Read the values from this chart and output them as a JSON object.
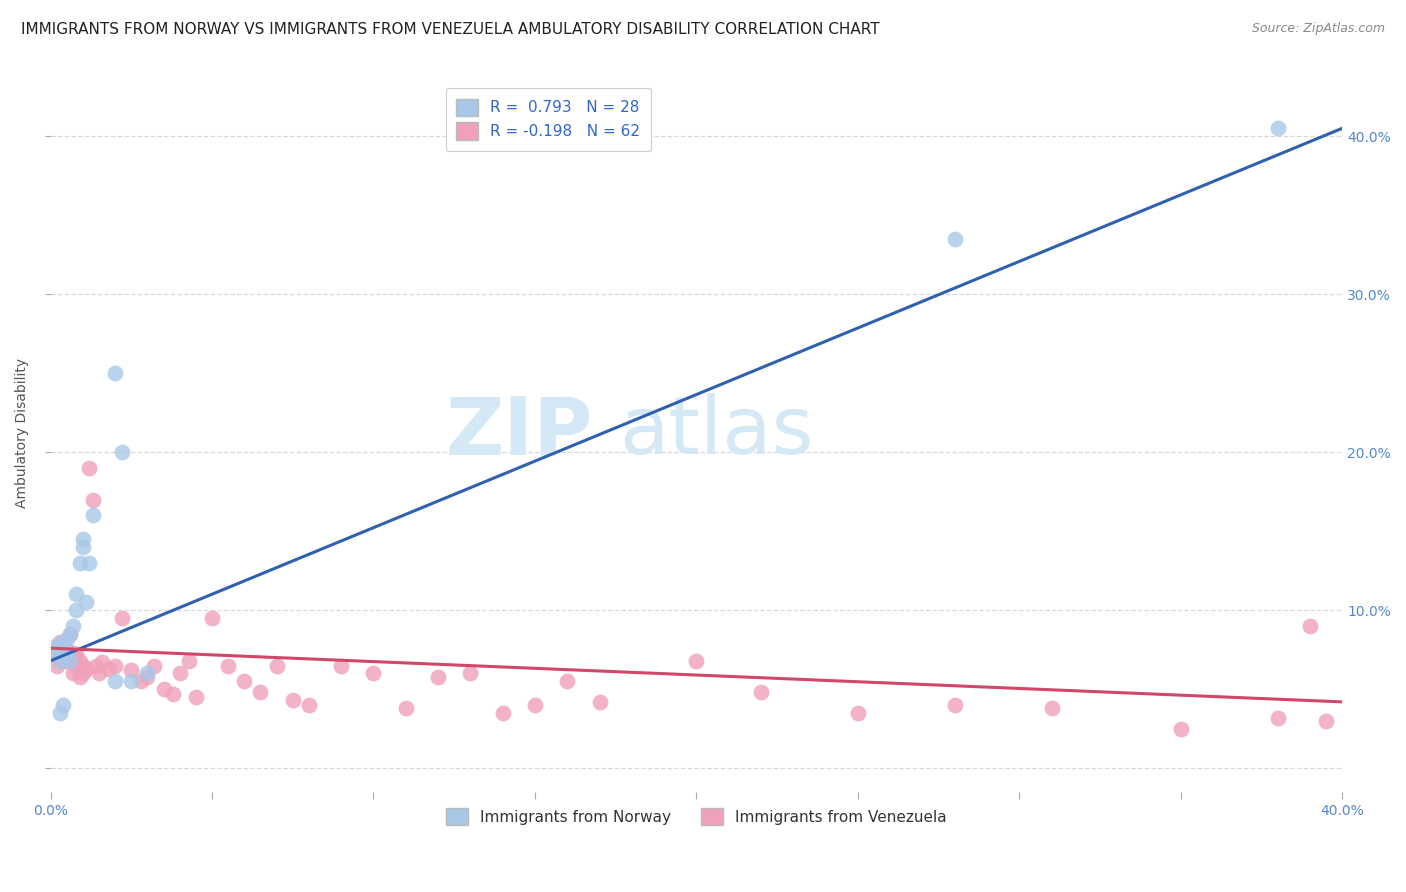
{
  "title": "IMMIGRANTS FROM NORWAY VS IMMIGRANTS FROM VENEZUELA AMBULATORY DISABILITY CORRELATION CHART",
  "source": "Source: ZipAtlas.com",
  "ylabel": "Ambulatory Disability",
  "xlim": [
    0.0,
    0.4
  ],
  "ylim": [
    -0.015,
    0.44
  ],
  "xticks": [
    0.0,
    0.05,
    0.1,
    0.15,
    0.2,
    0.25,
    0.3,
    0.35,
    0.4
  ],
  "xtick_labels": [
    "0.0%",
    "",
    "",
    "",
    "",
    "",
    "",
    "",
    "40.0%"
  ],
  "yticks": [
    0.0,
    0.1,
    0.2,
    0.3,
    0.4
  ],
  "ytick_labels_right": [
    "",
    "10.0%",
    "20.0%",
    "30.0%",
    "40.0%"
  ],
  "norway_R": 0.793,
  "norway_N": 28,
  "venezuela_R": -0.198,
  "venezuela_N": 62,
  "norway_color": "#a8c8e8",
  "norway_edge_color": "#90b8d8",
  "norway_line_color": "#3060b0",
  "venezuela_color": "#f0a0b8",
  "venezuela_edge_color": "#e090a8",
  "venezuela_line_color": "#d04868",
  "norway_trend_x0": 0.0,
  "norway_trend_y0": 0.068,
  "norway_trend_x1": 0.4,
  "norway_trend_y1": 0.405,
  "venezuela_trend_x0": 0.0,
  "venezuela_trend_y0": 0.076,
  "venezuela_trend_x1": 0.4,
  "venezuela_trend_y1": 0.042,
  "norway_x": [
    0.001,
    0.002,
    0.003,
    0.003,
    0.004,
    0.004,
    0.005,
    0.005,
    0.006,
    0.006,
    0.007,
    0.008,
    0.008,
    0.009,
    0.01,
    0.01,
    0.011,
    0.012,
    0.013,
    0.02,
    0.02,
    0.022,
    0.025,
    0.03,
    0.004,
    0.003,
    0.28,
    0.38
  ],
  "norway_y": [
    0.073,
    0.078,
    0.072,
    0.068,
    0.075,
    0.08,
    0.082,
    0.073,
    0.068,
    0.085,
    0.09,
    0.1,
    0.11,
    0.13,
    0.14,
    0.145,
    0.105,
    0.13,
    0.16,
    0.25,
    0.055,
    0.2,
    0.055,
    0.06,
    0.04,
    0.035,
    0.335,
    0.405
  ],
  "venezuela_x": [
    0.001,
    0.002,
    0.002,
    0.003,
    0.003,
    0.004,
    0.004,
    0.005,
    0.005,
    0.006,
    0.006,
    0.007,
    0.007,
    0.008,
    0.008,
    0.009,
    0.009,
    0.01,
    0.01,
    0.011,
    0.012,
    0.013,
    0.014,
    0.015,
    0.016,
    0.018,
    0.02,
    0.022,
    0.025,
    0.028,
    0.03,
    0.032,
    0.035,
    0.038,
    0.04,
    0.043,
    0.045,
    0.05,
    0.055,
    0.06,
    0.065,
    0.07,
    0.075,
    0.08,
    0.09,
    0.1,
    0.11,
    0.12,
    0.13,
    0.14,
    0.15,
    0.16,
    0.17,
    0.2,
    0.22,
    0.25,
    0.28,
    0.31,
    0.35,
    0.38,
    0.39,
    0.395
  ],
  "venezuela_y": [
    0.073,
    0.075,
    0.065,
    0.068,
    0.08,
    0.072,
    0.078,
    0.075,
    0.068,
    0.07,
    0.085,
    0.073,
    0.06,
    0.065,
    0.072,
    0.068,
    0.058,
    0.06,
    0.065,
    0.063,
    0.19,
    0.17,
    0.065,
    0.06,
    0.067,
    0.063,
    0.065,
    0.095,
    0.062,
    0.055,
    0.058,
    0.065,
    0.05,
    0.047,
    0.06,
    0.068,
    0.045,
    0.095,
    0.065,
    0.055,
    0.048,
    0.065,
    0.043,
    0.04,
    0.065,
    0.06,
    0.038,
    0.058,
    0.06,
    0.035,
    0.04,
    0.055,
    0.042,
    0.068,
    0.048,
    0.035,
    0.04,
    0.038,
    0.025,
    0.032,
    0.09,
    0.03
  ],
  "watermark_zip": "ZIP",
  "watermark_atlas": "atlas",
  "watermark_color": "#d5e8f5",
  "background_color": "#ffffff",
  "grid_color": "#d0d0d0"
}
